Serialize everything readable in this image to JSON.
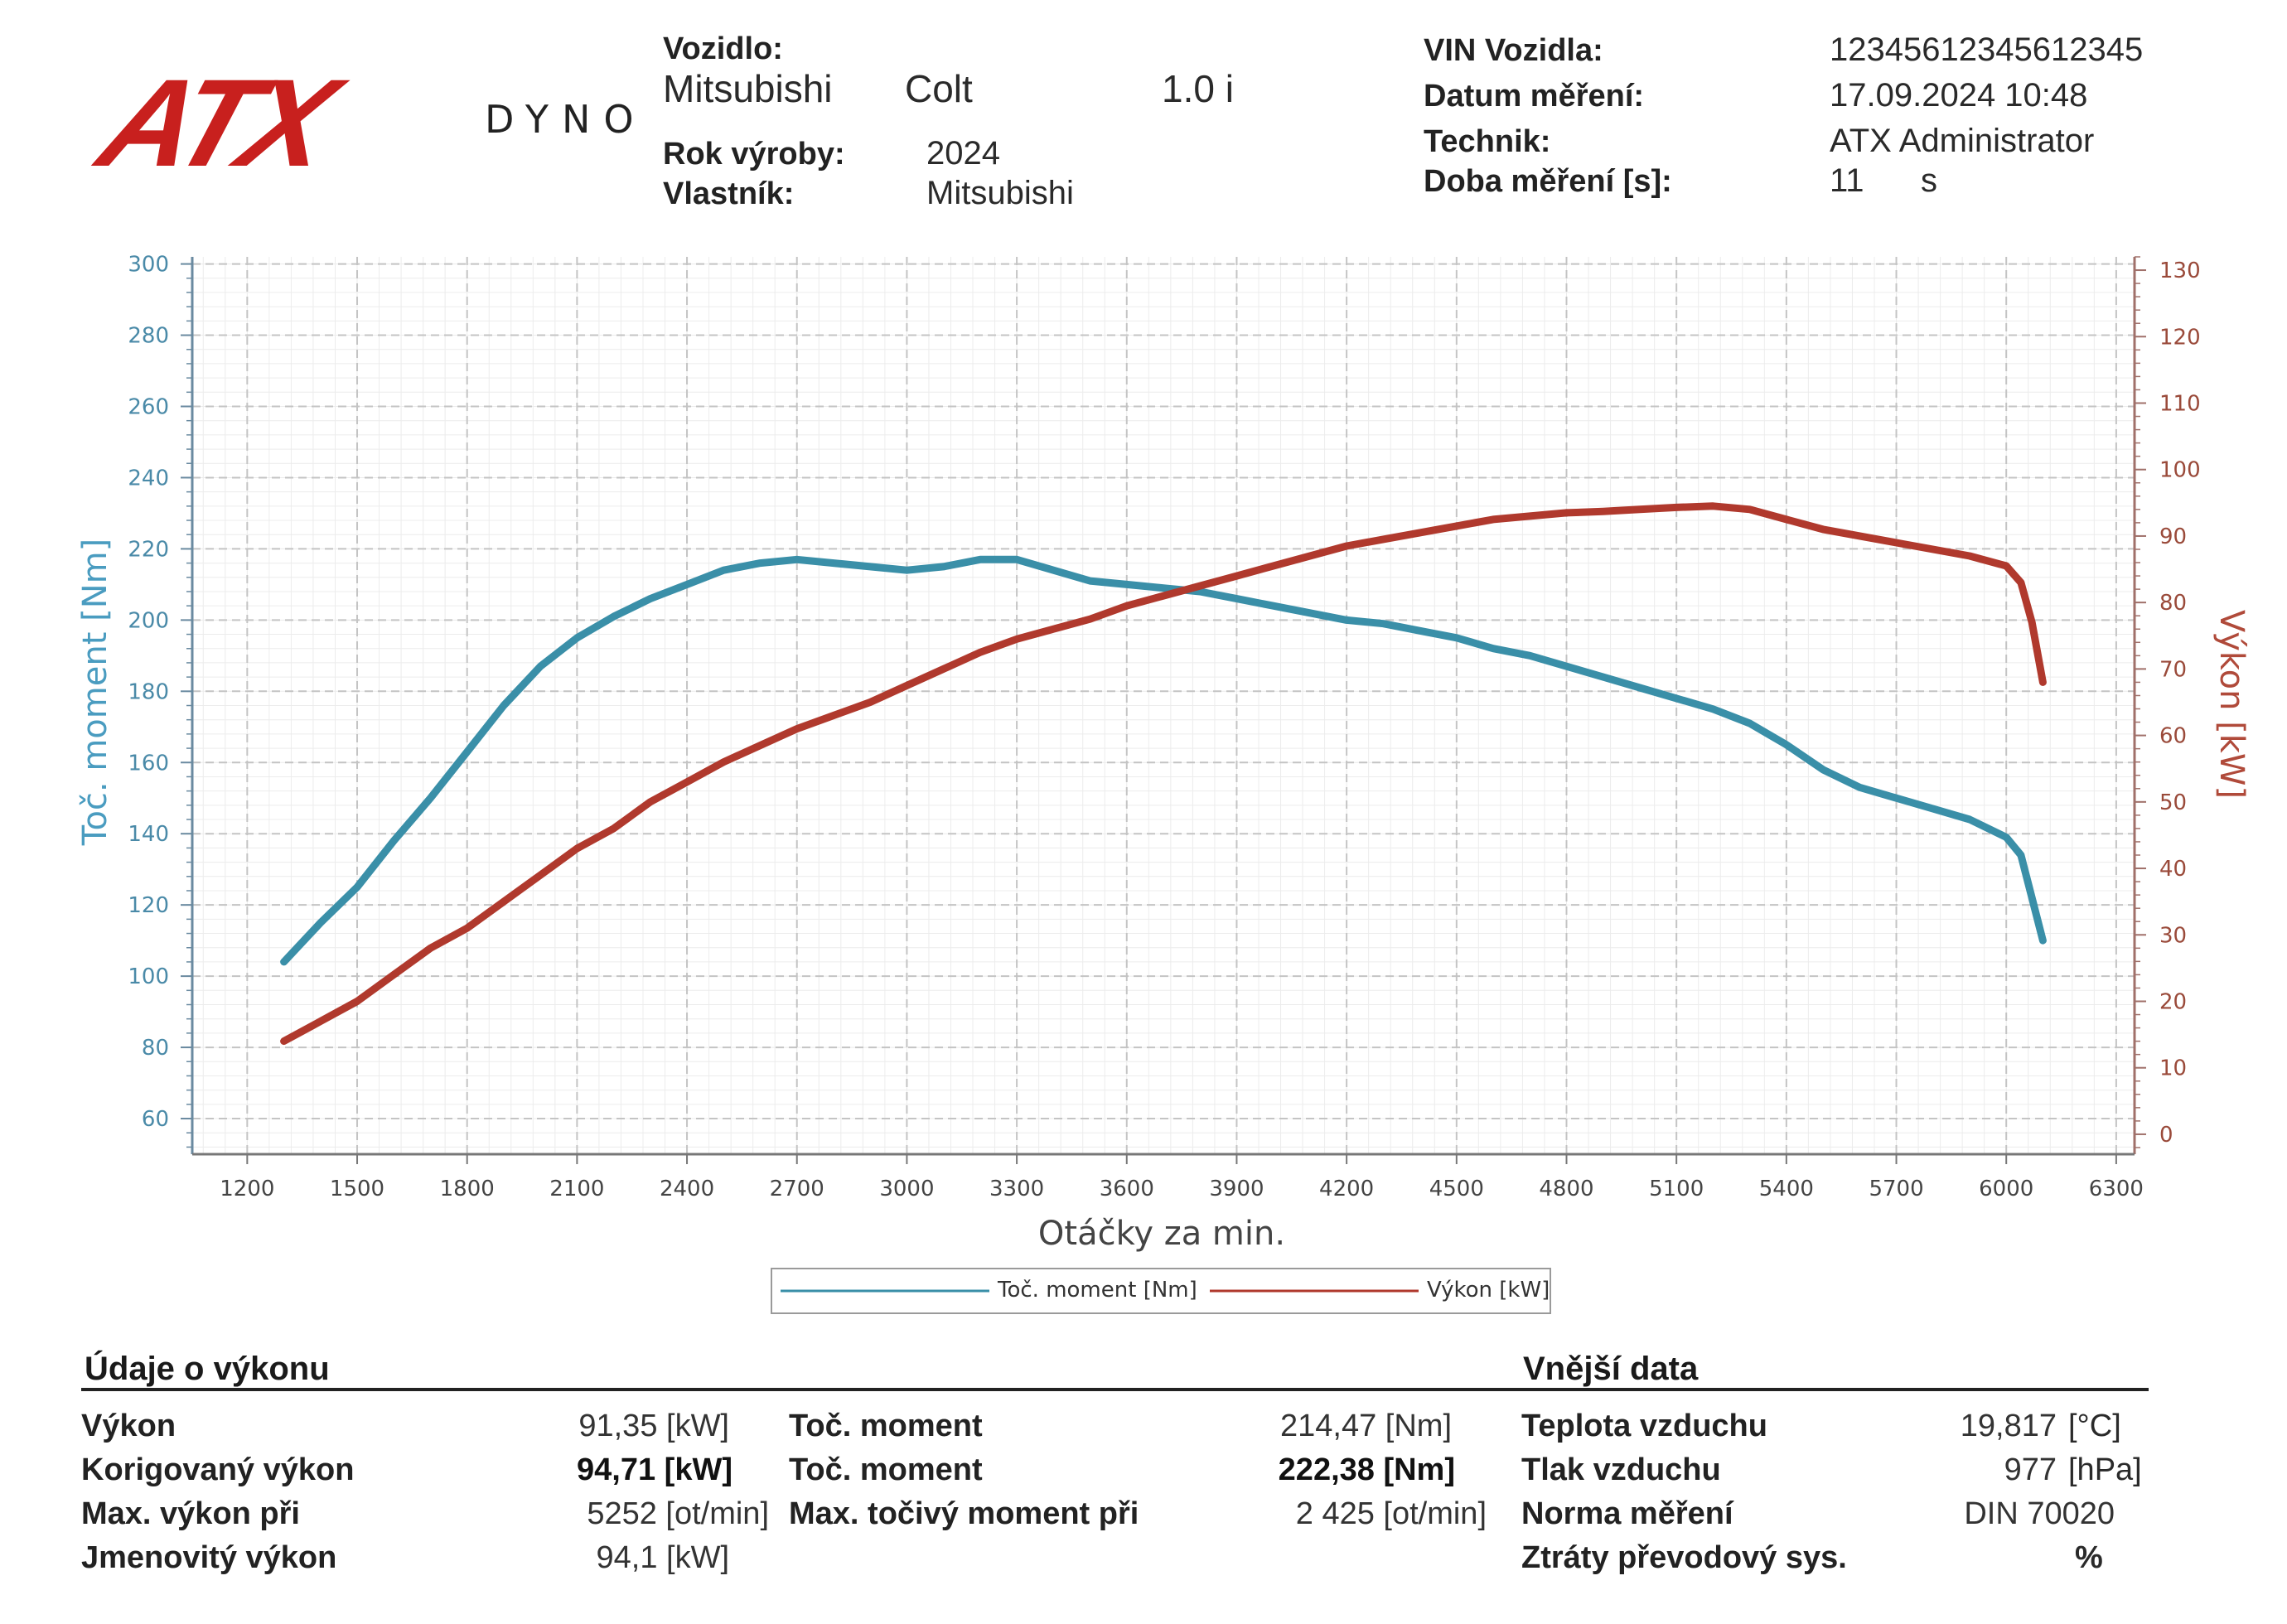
{
  "brand": {
    "logo_text": "ATX",
    "logo_sub": "DYNO",
    "red": "#c8201e"
  },
  "vehicle": {
    "label": "Vozidlo:",
    "make": "Mitsubishi",
    "model": "Colt",
    "engine": "1.0 i",
    "year_label": "Rok výroby:",
    "year": "2024",
    "owner_label": "Vlastník:",
    "owner": "Mitsubishi"
  },
  "measurement": {
    "vin_label": "VIN Vozidla:",
    "vin": "12345612345612345",
    "date_label": "Datum měření:",
    "date": "17.09.2024 10:48",
    "tech_label": "Technik:",
    "tech": "ATX Administrator",
    "duration_label": "Doba měření [s]:",
    "duration": "11",
    "duration_unit": "s"
  },
  "chart_data": {
    "type": "line",
    "xlabel": "Otáčky za min.",
    "ylabel_left": "Toč. moment [Nm]",
    "ylabel_right": "Výkon [kW]",
    "xlim": [
      1050,
      6350
    ],
    "ylim_left": [
      50,
      302
    ],
    "ylim_right": [
      -3,
      132
    ],
    "x_ticks": [
      1200,
      1500,
      1800,
      2100,
      2400,
      2700,
      3000,
      3300,
      3600,
      3900,
      4200,
      4500,
      4800,
      5100,
      5400,
      5700,
      6000,
      6300
    ],
    "y_left_ticks": [
      60,
      80,
      100,
      120,
      140,
      160,
      180,
      200,
      220,
      240,
      260,
      280,
      300
    ],
    "y_right_ticks": [
      0,
      10,
      20,
      30,
      40,
      50,
      60,
      70,
      80,
      90,
      100,
      110,
      120,
      130
    ],
    "grid": true,
    "legend_position": "bottom-center",
    "series": [
      {
        "name": "Toč. moment [Nm]",
        "axis": "left",
        "color": "#3a8fa8",
        "points": [
          [
            1300,
            104
          ],
          [
            1400,
            115
          ],
          [
            1500,
            125
          ],
          [
            1600,
            138
          ],
          [
            1700,
            150
          ],
          [
            1800,
            163
          ],
          [
            1900,
            176
          ],
          [
            2000,
            187
          ],
          [
            2100,
            195
          ],
          [
            2200,
            201
          ],
          [
            2300,
            206
          ],
          [
            2400,
            210
          ],
          [
            2500,
            214
          ],
          [
            2600,
            216
          ],
          [
            2700,
            217
          ],
          [
            2800,
            216
          ],
          [
            2900,
            215
          ],
          [
            3000,
            214
          ],
          [
            3100,
            215
          ],
          [
            3200,
            217
          ],
          [
            3300,
            217
          ],
          [
            3400,
            214
          ],
          [
            3500,
            211
          ],
          [
            3600,
            210
          ],
          [
            3700,
            209
          ],
          [
            3800,
            208
          ],
          [
            3900,
            206
          ],
          [
            4000,
            204
          ],
          [
            4100,
            202
          ],
          [
            4200,
            200
          ],
          [
            4300,
            199
          ],
          [
            4400,
            197
          ],
          [
            4500,
            195
          ],
          [
            4600,
            192
          ],
          [
            4700,
            190
          ],
          [
            4800,
            187
          ],
          [
            4900,
            184
          ],
          [
            5000,
            181
          ],
          [
            5100,
            178
          ],
          [
            5200,
            175
          ],
          [
            5300,
            171
          ],
          [
            5400,
            165
          ],
          [
            5500,
            158
          ],
          [
            5600,
            153
          ],
          [
            5700,
            150
          ],
          [
            5800,
            147
          ],
          [
            5900,
            144
          ],
          [
            6000,
            139
          ],
          [
            6040,
            134
          ],
          [
            6070,
            122
          ],
          [
            6100,
            110
          ]
        ]
      },
      {
        "name": "Výkon [kW]",
        "axis": "right",
        "color": "#b0392d",
        "points": [
          [
            1300,
            14
          ],
          [
            1400,
            17
          ],
          [
            1500,
            20
          ],
          [
            1600,
            24
          ],
          [
            1700,
            28
          ],
          [
            1800,
            31
          ],
          [
            1900,
            35
          ],
          [
            2000,
            39
          ],
          [
            2100,
            43
          ],
          [
            2200,
            46
          ],
          [
            2300,
            50
          ],
          [
            2400,
            53
          ],
          [
            2500,
            56
          ],
          [
            2600,
            58.5
          ],
          [
            2700,
            61
          ],
          [
            2800,
            63
          ],
          [
            2900,
            65
          ],
          [
            3000,
            67.5
          ],
          [
            3100,
            70
          ],
          [
            3200,
            72.5
          ],
          [
            3300,
            74.5
          ],
          [
            3400,
            76
          ],
          [
            3500,
            77.5
          ],
          [
            3600,
            79.5
          ],
          [
            3700,
            81
          ],
          [
            3800,
            82.5
          ],
          [
            3900,
            84
          ],
          [
            4000,
            85.5
          ],
          [
            4100,
            87
          ],
          [
            4200,
            88.5
          ],
          [
            4300,
            89.5
          ],
          [
            4400,
            90.5
          ],
          [
            4500,
            91.5
          ],
          [
            4600,
            92.5
          ],
          [
            4700,
            93
          ],
          [
            4800,
            93.5
          ],
          [
            4900,
            93.7
          ],
          [
            5000,
            94
          ],
          [
            5100,
            94.3
          ],
          [
            5200,
            94.5
          ],
          [
            5300,
            94
          ],
          [
            5400,
            92.5
          ],
          [
            5500,
            91
          ],
          [
            5600,
            90
          ],
          [
            5700,
            89
          ],
          [
            5800,
            88
          ],
          [
            5900,
            87
          ],
          [
            6000,
            85.5
          ],
          [
            6040,
            83
          ],
          [
            6070,
            77
          ],
          [
            6100,
            68
          ]
        ]
      }
    ]
  },
  "perf": {
    "title": "Údaje o výkonu",
    "rows": [
      {
        "label": "Výkon",
        "value": "91,35 [kW]"
      },
      {
        "label": "Korigovaný výkon",
        "value": "94,71 [kW]"
      },
      {
        "label": "Max. výkon při",
        "value": "5252 [ot/min]"
      },
      {
        "label": "Jmenovitý výkon",
        "value": "94,1 [kW]"
      }
    ],
    "torque_rows": [
      {
        "label": "Toč. moment",
        "value": "214,47 [Nm]"
      },
      {
        "label": "Toč. moment",
        "value": "222,38 [Nm]"
      },
      {
        "label": "Max. točivý moment při",
        "value": "2 425 [ot/min]"
      }
    ]
  },
  "external": {
    "title": "Vnější data",
    "rows": [
      {
        "label": "Teplota vzduchu",
        "value": "19,817",
        "unit": "[°C]"
      },
      {
        "label": "Tlak vzduchu",
        "value": "977",
        "unit": "[hPa]"
      },
      {
        "label": "Norma měření",
        "value": "DIN 70020",
        "unit": ""
      },
      {
        "label": "Ztráty převodový sys.",
        "value": "",
        "unit": "%"
      }
    ]
  }
}
